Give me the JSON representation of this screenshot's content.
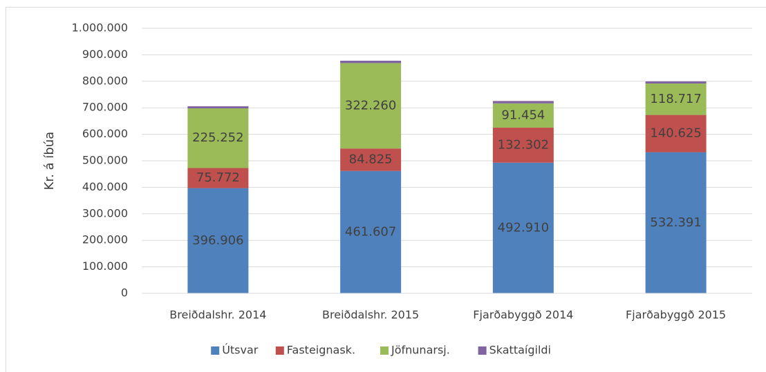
{
  "chart_data": {
    "type": "stacked_bar",
    "y_label": "Kr. á íbúa",
    "categories": [
      "Breiðdalshr. 2014",
      "Breiðdalshr. 2015",
      "Fjarðabyggð 2014",
      "Fjarðabyggð 2015"
    ],
    "series": [
      {
        "name": "Útsvar",
        "color": "#4f81bd",
        "values": [
          396906,
          461607,
          492910,
          532391
        ],
        "value_labels": [
          "396.906",
          "461.607",
          "492.910",
          "532.391"
        ]
      },
      {
        "name": "Fasteignask.",
        "color": "#c0504d",
        "values": [
          75772,
          84825,
          132302,
          140625
        ],
        "value_labels": [
          "75.772",
          "84.825",
          "132.302",
          "140.625"
        ]
      },
      {
        "name": "Jöfnunarsj.",
        "color": "#9bbb59",
        "values": [
          225252,
          322260,
          91454,
          118717
        ],
        "value_labels": [
          "225.252",
          "322.260",
          "91.454",
          "118.717"
        ]
      },
      {
        "name": "Skattaígildi",
        "color": "#8064a2",
        "values": [
          8000,
          9000,
          9000,
          8000
        ]
      }
    ],
    "ylim": [
      0,
      1000000
    ],
    "yticks": [
      0,
      {
        "value": 100000,
        "label": "100.000"
      },
      {
        "value": 200000,
        "label": "200.000"
      },
      {
        "value": 300000,
        "label": "300.000"
      },
      {
        "value": 400000,
        "label": "400.000"
      },
      {
        "value": 500000,
        "label": "500.000"
      },
      {
        "value": 600000,
        "label": "600.000"
      },
      {
        "value": 700000,
        "label": "700.000"
      },
      {
        "value": 800000,
        "label": "800.000"
      },
      {
        "value": 900000,
        "label": "900.000"
      },
      {
        "value": 1000000,
        "label": "1.000.000"
      }
    ],
    "grid": true,
    "legend": "bottom"
  }
}
